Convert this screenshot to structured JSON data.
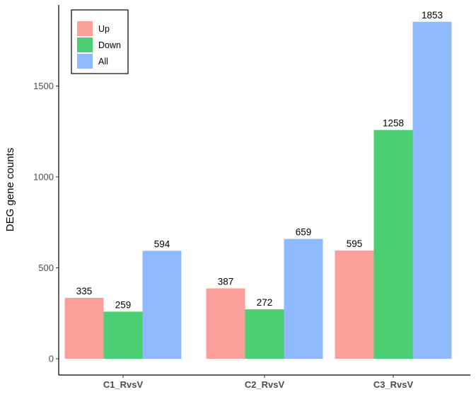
{
  "chart_data": {
    "type": "bar",
    "title": "",
    "xlabel": "",
    "ylabel": "DEG gene counts",
    "categories": [
      "C1_RvsV",
      "C2_RvsV",
      "C3_RvsV"
    ],
    "series": [
      {
        "name": "Up",
        "values": [
          335,
          387,
          595
        ],
        "color": "#F8766D"
      },
      {
        "name": "Down",
        "values": [
          259,
          272,
          1258
        ],
        "color": "#00BA38"
      },
      {
        "name": "All",
        "values": [
          594,
          659,
          1853
        ],
        "color": "#619CFF"
      }
    ],
    "yticks": [
      0,
      500,
      1000,
      1500
    ],
    "ylim": [
      0,
      1853
    ],
    "grid": false,
    "legend": "top-left"
  }
}
